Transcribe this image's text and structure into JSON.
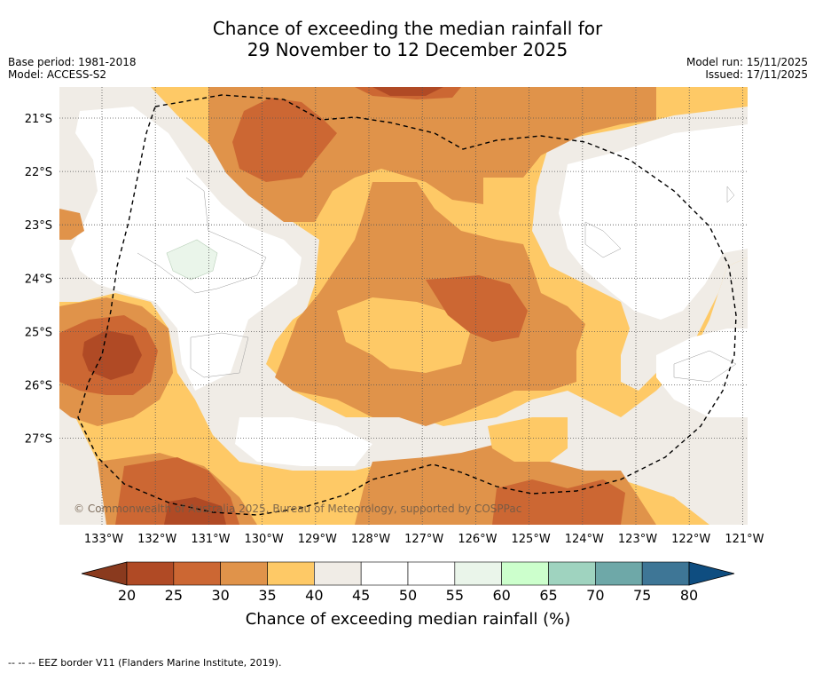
{
  "title": {
    "line1": "Chance of exceeding the median rainfall for",
    "line2": "29 November to 12 December 2025"
  },
  "meta_left": {
    "base_period": "Base period: 1981-2018",
    "model": "Model: ACCESS-S2"
  },
  "meta_right": {
    "model_run": "Model run: 15/11/2025",
    "issued": "Issued: 17/11/2025"
  },
  "lat_labels": [
    "21°S",
    "22°S",
    "23°S",
    "24°S",
    "25°S",
    "26°S",
    "27°S"
  ],
  "lon_labels": [
    "133°W",
    "132°W",
    "131°W",
    "130°W",
    "129°W",
    "128°W",
    "127°W",
    "126°W",
    "125°W",
    "124°W",
    "123°W",
    "122°W",
    "121°W"
  ],
  "copyright": "© Commonwealth of Australia 2025, Bureau of Meteorology, supported by COSPPac",
  "colorbar": {
    "ticks": [
      "20",
      "25",
      "30",
      "35",
      "40",
      "45",
      "50",
      "55",
      "60",
      "65",
      "70",
      "75",
      "80"
    ],
    "label": "Chance of exceeding median rainfall (%)",
    "under_color": "#8a3a1e",
    "over_color": "#0e4d80",
    "colors": [
      "#b04a25",
      "#cc6733",
      "#e0934a",
      "#fec966",
      "#f0ece6",
      "#ffffff",
      "#ffffff",
      "#eaf5ea",
      "#ccffcc",
      "#9fd3bf",
      "#6ea8a8",
      "#3e7696"
    ]
  },
  "legend_note": "--  --  -- EEZ border V11 (Flanders Marine Institute, 2019)."
}
